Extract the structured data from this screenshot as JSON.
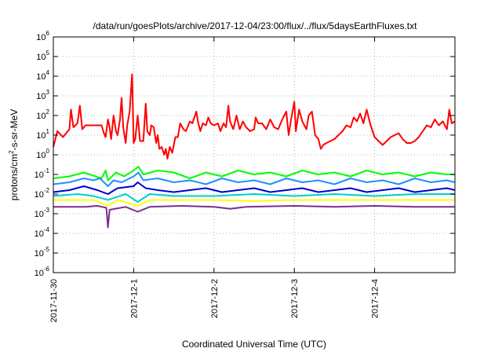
{
  "chart_data": {
    "type": "line",
    "title": "/data/run/goesPlots/archive/2017-12-04/23:00/flux/../flux/5daysEarthFluxes.txt",
    "xlabel": "Coordinated Universal Time (UTC)",
    "ylabel": {
      "base": "protons/cm",
      "sup": "2",
      "rest": "-s-sr-MeV"
    },
    "y_scale": "log",
    "ylim_exponent": [
      -6,
      6
    ],
    "y_ticks": [
      {
        "base": "10",
        "exp": "-6"
      },
      {
        "base": "10",
        "exp": "-5"
      },
      {
        "base": "10",
        "exp": "-4"
      },
      {
        "base": "10",
        "exp": "-3"
      },
      {
        "base": "10",
        "exp": "-2"
      },
      {
        "base": "10",
        "exp": "-1"
      },
      {
        "base": "10",
        "exp": "0"
      },
      {
        "base": "10",
        "exp": "1"
      },
      {
        "base": "10",
        "exp": "2"
      },
      {
        "base": "10",
        "exp": "3"
      },
      {
        "base": "10",
        "exp": "4"
      },
      {
        "base": "10",
        "exp": "5"
      },
      {
        "base": "10",
        "exp": "6"
      }
    ],
    "x_range_days": [
      0,
      5
    ],
    "x_ticks": [
      "2017-11-30",
      "2017-12-1",
      "2017-12-2",
      "2017-12-3",
      "2017-12-4"
    ],
    "grid": true,
    "series": [
      {
        "color": "#ff0000",
        "points": [
          [
            0,
            0.4
          ],
          [
            0.05,
            1.2
          ],
          [
            0.12,
            0.9
          ],
          [
            0.2,
            1.3
          ],
          [
            0.22,
            2.3
          ],
          [
            0.25,
            1.4
          ],
          [
            0.3,
            1.6
          ],
          [
            0.33,
            2.5
          ],
          [
            0.36,
            1.3
          ],
          [
            0.4,
            1.5
          ],
          [
            0.6,
            1.5
          ],
          [
            0.63,
            1.1
          ],
          [
            0.65,
            0.9
          ],
          [
            0.68,
            1.8
          ],
          [
            0.7,
            1.4
          ],
          [
            0.72,
            0.8
          ],
          [
            0.75,
            2.0
          ],
          [
            0.78,
            1.2
          ],
          [
            0.8,
            1.0
          ],
          [
            0.83,
            1.8
          ],
          [
            0.85,
            2.9
          ],
          [
            0.87,
            1.4
          ],
          [
            0.9,
            0.6
          ],
          [
            0.92,
            1.5
          ],
          [
            0.95,
            2.2
          ],
          [
            0.98,
            4.1
          ],
          [
            1.0,
            0.6
          ],
          [
            1.02,
            0.8
          ],
          [
            1.05,
            2.0
          ],
          [
            1.08,
            0.7
          ],
          [
            1.12,
            0.7
          ],
          [
            1.15,
            2.6
          ],
          [
            1.17,
            1.2
          ],
          [
            1.2,
            1.0
          ],
          [
            1.22,
            1.5
          ],
          [
            1.25,
            1.4
          ],
          [
            1.28,
            0.6
          ],
          [
            1.3,
            1.0
          ],
          [
            1.32,
            0.3
          ],
          [
            1.35,
            0.4
          ],
          [
            1.38,
            0.0
          ],
          [
            1.4,
            0.3
          ],
          [
            1.42,
            -0.2
          ],
          [
            1.45,
            0.4
          ],
          [
            1.48,
            0.1
          ],
          [
            1.5,
            0.5
          ],
          [
            1.52,
            0.9
          ],
          [
            1.55,
            0.9
          ],
          [
            1.58,
            1.6
          ],
          [
            1.62,
            1.3
          ],
          [
            1.65,
            1.2
          ],
          [
            1.7,
            1.7
          ],
          [
            1.73,
            1.6
          ],
          [
            1.78,
            2.2
          ],
          [
            1.8,
            1.7
          ],
          [
            1.83,
            1.2
          ],
          [
            1.86,
            1.6
          ],
          [
            1.9,
            1.5
          ],
          [
            1.93,
            1.9
          ],
          [
            1.96,
            1.6
          ],
          [
            2.0,
            1.5
          ],
          [
            2.05,
            1.6
          ],
          [
            2.08,
            1.2
          ],
          [
            2.12,
            1.6
          ],
          [
            2.15,
            1.4
          ],
          [
            2.18,
            2.5
          ],
          [
            2.2,
            1.7
          ],
          [
            2.24,
            1.3
          ],
          [
            2.28,
            2.0
          ],
          [
            2.32,
            1.3
          ],
          [
            2.36,
            1.7
          ],
          [
            2.4,
            1.4
          ],
          [
            2.45,
            1.2
          ],
          [
            2.5,
            1.3
          ],
          [
            2.52,
            1.9
          ],
          [
            2.55,
            1.6
          ],
          [
            2.6,
            1.6
          ],
          [
            2.65,
            1.3
          ],
          [
            2.7,
            1.8
          ],
          [
            2.75,
            1.4
          ],
          [
            2.8,
            1.3
          ],
          [
            2.85,
            1.8
          ],
          [
            2.9,
            2.2
          ],
          [
            2.93,
            1.0
          ],
          [
            2.96,
            1.8
          ],
          [
            3.0,
            2.7
          ],
          [
            3.02,
            1.2
          ],
          [
            3.06,
            2.3
          ],
          [
            3.1,
            1.7
          ],
          [
            3.15,
            1.3
          ],
          [
            3.18,
            2.0
          ],
          [
            3.22,
            2.2
          ],
          [
            3.26,
            1.0
          ],
          [
            3.3,
            0.8
          ],
          [
            3.33,
            0.3
          ],
          [
            3.36,
            0.5
          ],
          [
            3.4,
            0.6
          ],
          [
            3.45,
            0.7
          ],
          [
            3.5,
            0.8
          ],
          [
            3.55,
            1.0
          ],
          [
            3.6,
            1.2
          ],
          [
            3.65,
            1.5
          ],
          [
            3.7,
            1.4
          ],
          [
            3.74,
            1.9
          ],
          [
            3.78,
            1.7
          ],
          [
            3.82,
            2.1
          ],
          [
            3.86,
            1.6
          ],
          [
            3.9,
            2.3
          ],
          [
            3.95,
            1.5
          ],
          [
            4.0,
            0.9
          ],
          [
            4.05,
            0.7
          ],
          [
            4.1,
            0.5
          ],
          [
            4.15,
            0.7
          ],
          [
            4.2,
            0.9
          ],
          [
            4.25,
            1.0
          ],
          [
            4.3,
            1.1
          ],
          [
            4.35,
            0.8
          ],
          [
            4.4,
            0.6
          ],
          [
            4.45,
            0.6
          ],
          [
            4.5,
            0.7
          ],
          [
            4.55,
            0.9
          ],
          [
            4.6,
            1.2
          ],
          [
            4.65,
            1.5
          ],
          [
            4.7,
            1.4
          ],
          [
            4.75,
            1.8
          ],
          [
            4.8,
            1.5
          ],
          [
            4.85,
            1.7
          ],
          [
            4.9,
            1.3
          ],
          [
            4.93,
            2.3
          ],
          [
            4.96,
            1.6
          ],
          [
            5.0,
            1.7
          ]
        ]
      },
      {
        "color": "#00ff00",
        "points": [
          [
            0,
            -1.2
          ],
          [
            0.2,
            -1.1
          ],
          [
            0.38,
            -0.9
          ],
          [
            0.6,
            -1.2
          ],
          [
            0.65,
            -0.8
          ],
          [
            0.68,
            -1.3
          ],
          [
            0.78,
            -0.9
          ],
          [
            0.88,
            -1.1
          ],
          [
            1.0,
            -0.8
          ],
          [
            1.06,
            -0.6
          ],
          [
            1.12,
            -1.0
          ],
          [
            1.3,
            -0.8
          ],
          [
            1.5,
            -0.9
          ],
          [
            1.7,
            -1.2
          ],
          [
            1.9,
            -0.9
          ],
          [
            2.1,
            -1.1
          ],
          [
            2.3,
            -0.8
          ],
          [
            2.5,
            -1.0
          ],
          [
            2.7,
            -0.9
          ],
          [
            2.9,
            -1.1
          ],
          [
            3.1,
            -0.8
          ],
          [
            3.3,
            -1.0
          ],
          [
            3.5,
            -0.9
          ],
          [
            3.7,
            -1.1
          ],
          [
            3.9,
            -0.8
          ],
          [
            4.1,
            -1.0
          ],
          [
            4.3,
            -0.9
          ],
          [
            4.5,
            -1.1
          ],
          [
            4.7,
            -0.9
          ],
          [
            4.9,
            -1.0
          ],
          [
            5.0,
            -1.0
          ]
        ]
      },
      {
        "color": "#1e90ff",
        "points": [
          [
            0,
            -1.5
          ],
          [
            0.2,
            -1.4
          ],
          [
            0.38,
            -1.2
          ],
          [
            0.5,
            -1.3
          ],
          [
            0.58,
            -1.2
          ],
          [
            0.68,
            -1.6
          ],
          [
            0.75,
            -1.3
          ],
          [
            0.85,
            -1.4
          ],
          [
            1.0,
            -1.1
          ],
          [
            1.06,
            -0.9
          ],
          [
            1.12,
            -1.3
          ],
          [
            1.3,
            -1.2
          ],
          [
            1.5,
            -1.4
          ],
          [
            1.7,
            -1.3
          ],
          [
            1.9,
            -1.5
          ],
          [
            2.1,
            -1.2
          ],
          [
            2.3,
            -1.4
          ],
          [
            2.5,
            -1.3
          ],
          [
            2.7,
            -1.5
          ],
          [
            2.9,
            -1.2
          ],
          [
            3.1,
            -1.4
          ],
          [
            3.3,
            -1.3
          ],
          [
            3.5,
            -1.5
          ],
          [
            3.7,
            -1.2
          ],
          [
            3.9,
            -1.4
          ],
          [
            4.1,
            -1.3
          ],
          [
            4.3,
            -1.5
          ],
          [
            4.5,
            -1.2
          ],
          [
            4.7,
            -1.4
          ],
          [
            4.9,
            -1.3
          ],
          [
            5.0,
            -1.4
          ]
        ]
      },
      {
        "color": "#0000cd",
        "points": [
          [
            0,
            -1.9
          ],
          [
            0.2,
            -1.8
          ],
          [
            0.38,
            -1.6
          ],
          [
            0.55,
            -1.8
          ],
          [
            0.68,
            -2.0
          ],
          [
            0.8,
            -1.7
          ],
          [
            1.0,
            -1.6
          ],
          [
            1.05,
            -1.4
          ],
          [
            1.15,
            -1.7
          ],
          [
            1.3,
            -1.8
          ],
          [
            1.5,
            -1.9
          ],
          [
            1.7,
            -1.8
          ],
          [
            1.9,
            -1.7
          ],
          [
            2.1,
            -1.9
          ],
          [
            2.3,
            -1.8
          ],
          [
            2.5,
            -1.7
          ],
          [
            2.7,
            -1.9
          ],
          [
            2.9,
            -1.8
          ],
          [
            3.1,
            -1.7
          ],
          [
            3.3,
            -1.9
          ],
          [
            3.5,
            -1.8
          ],
          [
            3.7,
            -1.7
          ],
          [
            3.9,
            -1.9
          ],
          [
            4.1,
            -1.8
          ],
          [
            4.3,
            -1.7
          ],
          [
            4.5,
            -1.9
          ],
          [
            4.7,
            -1.8
          ],
          [
            4.9,
            -1.7
          ],
          [
            5.0,
            -1.8
          ]
        ]
      },
      {
        "color": "#00ced1",
        "points": [
          [
            0,
            -2.1
          ],
          [
            0.3,
            -2.0
          ],
          [
            0.5,
            -2.1
          ],
          [
            0.68,
            -2.3
          ],
          [
            0.9,
            -2.0
          ],
          [
            1.05,
            -2.4
          ],
          [
            1.2,
            -2.0
          ],
          [
            1.5,
            -2.1
          ],
          [
            2.0,
            -2.1
          ],
          [
            2.5,
            -2.0
          ],
          [
            3.0,
            -2.1
          ],
          [
            3.5,
            -2.0
          ],
          [
            4.0,
            -2.1
          ],
          [
            4.5,
            -2.0
          ],
          [
            5.0,
            -2.0
          ]
        ]
      },
      {
        "color": "#ffff00",
        "points": [
          [
            0,
            -2.3
          ],
          [
            0.5,
            -2.3
          ],
          [
            0.68,
            -2.6
          ],
          [
            0.8,
            -2.3
          ],
          [
            1.05,
            -2.6
          ],
          [
            1.2,
            -2.3
          ],
          [
            2.0,
            -2.3
          ],
          [
            2.5,
            -2.35
          ],
          [
            3.0,
            -2.3
          ],
          [
            4.0,
            -2.3
          ],
          [
            5.0,
            -2.3
          ]
        ]
      },
      {
        "color": "#7b2d8e",
        "points": [
          [
            0,
            -2.65
          ],
          [
            0.4,
            -2.65
          ],
          [
            0.55,
            -2.6
          ],
          [
            0.66,
            -2.7
          ],
          [
            0.68,
            -3.7
          ],
          [
            0.7,
            -2.8
          ],
          [
            0.9,
            -2.65
          ],
          [
            1.05,
            -2.9
          ],
          [
            1.2,
            -2.65
          ],
          [
            1.6,
            -2.6
          ],
          [
            2.0,
            -2.65
          ],
          [
            2.2,
            -2.75
          ],
          [
            2.4,
            -2.65
          ],
          [
            3.0,
            -2.6
          ],
          [
            3.5,
            -2.65
          ],
          [
            4.0,
            -2.6
          ],
          [
            4.5,
            -2.65
          ],
          [
            5.0,
            -2.65
          ]
        ]
      }
    ]
  }
}
